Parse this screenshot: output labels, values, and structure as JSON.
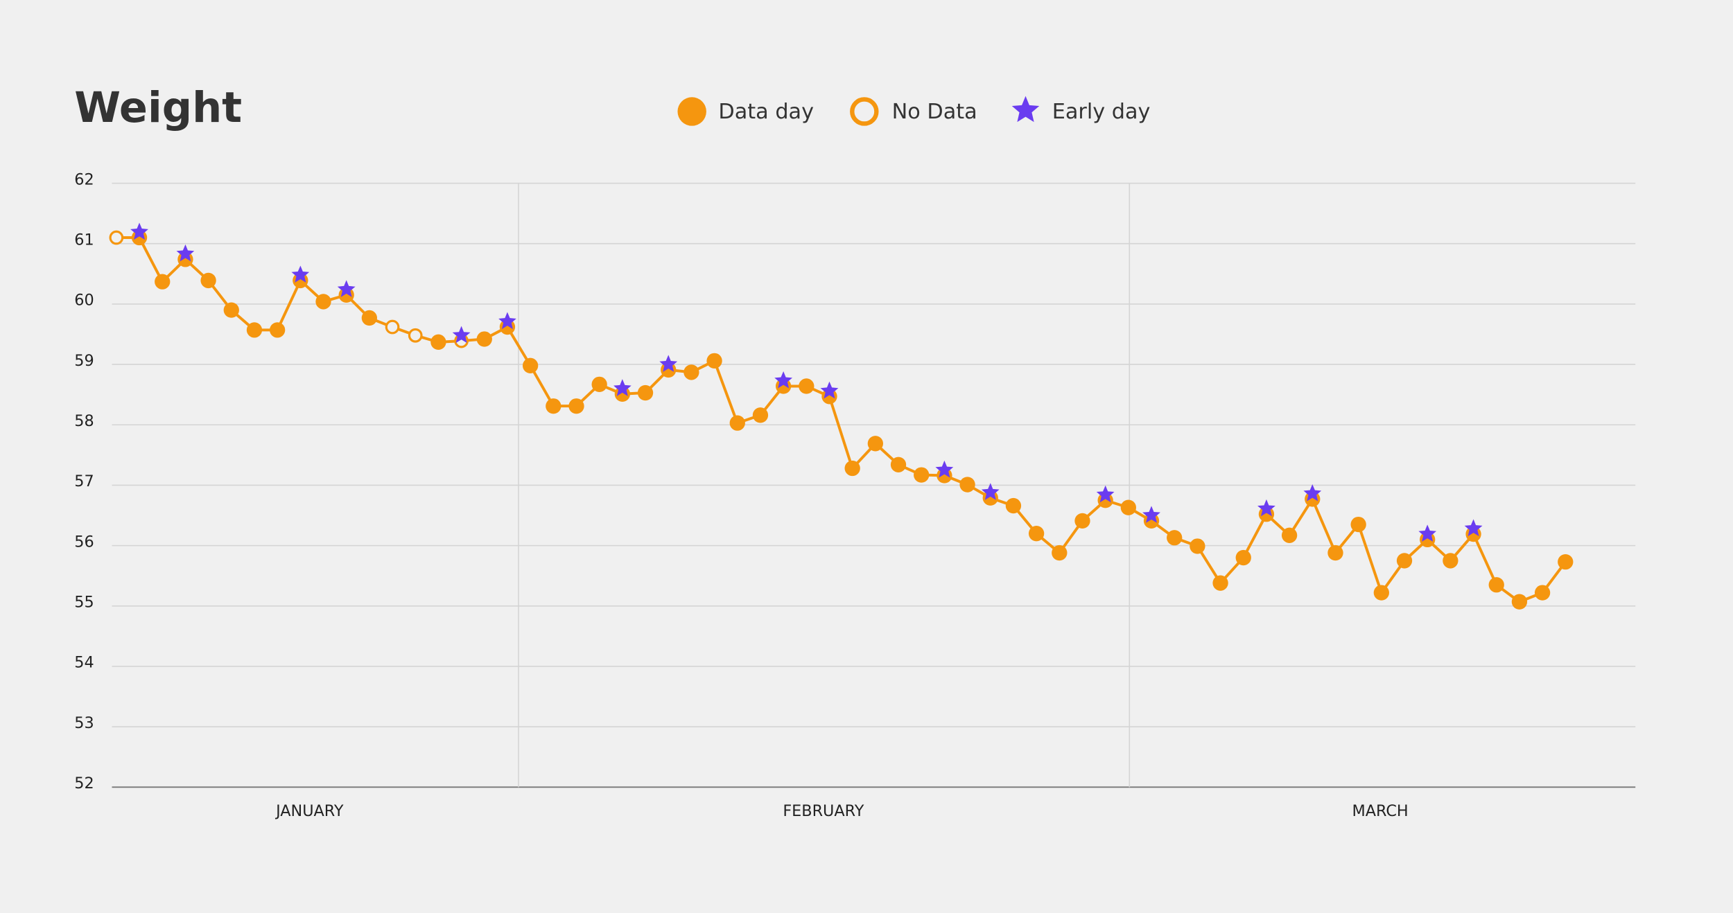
{
  "chart_data": {
    "type": "line",
    "title": "Weight",
    "ylim": [
      52,
      62
    ],
    "yticks": [
      52,
      53,
      54,
      55,
      56,
      57,
      58,
      59,
      60,
      61,
      62
    ],
    "grid": true,
    "months": [
      "JANUARY",
      "FEBRUARY",
      "MARCH"
    ],
    "marker_labels": {
      "filled": "Data day",
      "hollow": "No Data",
      "early": "Early day"
    },
    "color": "#f5960f",
    "early_color": "#6a3cf0",
    "series": [
      {
        "values": [
          61.1,
          61.1,
          60.37,
          60.74,
          60.39,
          59.9,
          59.57,
          59.57,
          60.39,
          60.04,
          60.15,
          59.77,
          59.62,
          59.48,
          59.37,
          59.39,
          59.42,
          59.62,
          58.98,
          58.31,
          58.31,
          58.67,
          58.51,
          58.53,
          58.91,
          58.87,
          59.06,
          58.03,
          58.16,
          58.64,
          58.64,
          58.47,
          57.28,
          57.69,
          57.34,
          57.17,
          57.16,
          57.01,
          56.79,
          56.66,
          56.2,
          55.88,
          56.41,
          56.75,
          56.63,
          56.41,
          56.13,
          55.99,
          55.38,
          55.8,
          56.52,
          56.17,
          56.77,
          55.88,
          56.35,
          55.22,
          55.75,
          56.1,
          55.75,
          56.19,
          55.35,
          55.07,
          55.22,
          55.73
        ],
        "hollow": [
          true,
          false,
          false,
          false,
          false,
          false,
          false,
          false,
          false,
          false,
          false,
          false,
          true,
          true,
          false,
          true,
          false,
          false,
          false,
          false,
          false,
          false,
          false,
          false,
          false,
          false,
          false,
          false,
          false,
          false,
          false,
          false,
          false,
          false,
          false,
          false,
          false,
          false,
          false,
          false,
          false,
          false,
          false,
          false,
          false,
          false,
          false,
          false,
          false,
          false,
          false,
          false,
          false,
          false,
          false,
          false,
          false,
          false,
          false,
          false,
          false,
          false,
          false,
          false
        ],
        "early": [
          false,
          true,
          false,
          true,
          false,
          false,
          false,
          false,
          true,
          false,
          true,
          false,
          false,
          false,
          false,
          true,
          false,
          true,
          false,
          false,
          false,
          false,
          true,
          false,
          true,
          false,
          false,
          false,
          false,
          true,
          false,
          true,
          false,
          false,
          false,
          false,
          true,
          false,
          true,
          false,
          false,
          false,
          false,
          true,
          false,
          true,
          false,
          false,
          false,
          false,
          true,
          false,
          true,
          false,
          false,
          false,
          false,
          true,
          false,
          true,
          false,
          false,
          false,
          false
        ]
      }
    ]
  }
}
